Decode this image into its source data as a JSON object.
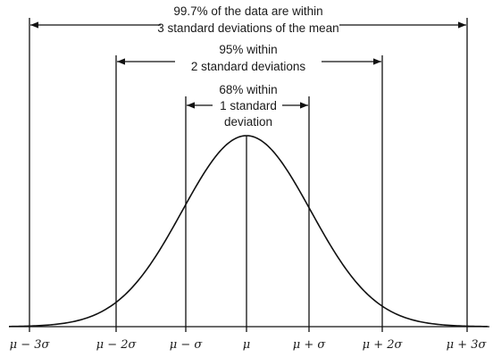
{
  "annotations": {
    "sigma3": {
      "line1": "99.7% of the data are within",
      "line2": "3 standard deviations of the mean"
    },
    "sigma2": {
      "line1": "95% within",
      "line2": "2 standard deviations"
    },
    "sigma1": {
      "line1": "68% within",
      "line2": "1 standard",
      "line3": "deviation"
    }
  },
  "ticks": [
    "μ − 3σ",
    "μ − 2σ",
    "μ − σ",
    "μ",
    "μ + σ",
    "μ + 2σ",
    "μ + 3σ"
  ],
  "colors": {
    "ink": "#111111",
    "background": "#ffffff"
  }
}
